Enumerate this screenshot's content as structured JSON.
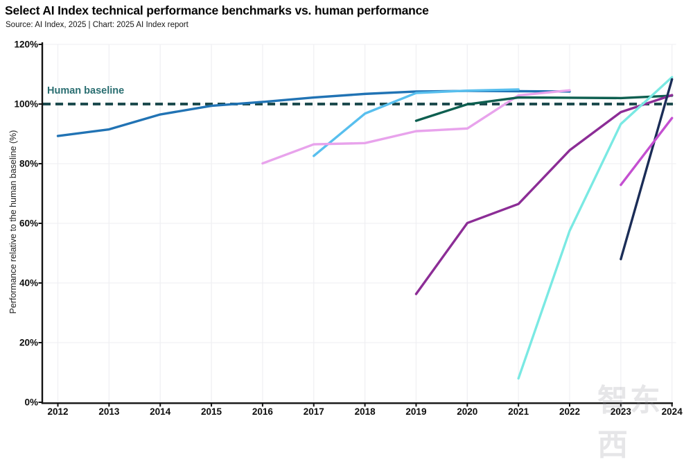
{
  "header": {
    "title": "Select AI Index technical performance benchmarks vs. human performance",
    "source_line": "Source: AI Index, 2025 | Chart: 2025 AI Index report"
  },
  "chart_data": {
    "type": "line",
    "title": "Select AI Index technical performance benchmarks vs. human performance",
    "source": "Source: AI Index, 2025 | Chart: 2025 AI Index report",
    "xlabel": "",
    "ylabel": "Performance relative to the human baseline (%)",
    "x_ticks": [
      2012,
      2013,
      2014,
      2015,
      2016,
      2017,
      2018,
      2019,
      2020,
      2021,
      2022,
      2023,
      2024
    ],
    "y_ticks": [
      0,
      20,
      40,
      60,
      80,
      100,
      120
    ],
    "y_tick_suffix": "%",
    "xlim": [
      2012,
      2024
    ],
    "ylim": [
      0,
      120
    ],
    "grid": true,
    "legend": "none",
    "baseline": {
      "label": "Human baseline",
      "value": 100,
      "color": "#1d4b4e",
      "label_color": "#2a6e71"
    },
    "style": {
      "grid_color": "#f0f0f3",
      "axis_color": "#111111",
      "line_width": 3.4
    },
    "series": [
      {
        "name": "dark-blue",
        "color": "#2173b4",
        "x": [
          2012,
          2013,
          2014,
          2015,
          2016,
          2017,
          2018,
          2019,
          2020,
          2021,
          2022
        ],
        "values": [
          89.3,
          91.5,
          96.5,
          99.4,
          100.7,
          102.2,
          103.4,
          104.2,
          104.4,
          104.3,
          104.2
        ]
      },
      {
        "name": "sky-blue",
        "color": "#58bfee",
        "x": [
          2017,
          2018,
          2019,
          2020,
          2021
        ],
        "values": [
          82.6,
          96.8,
          103.7,
          104.5,
          104.9
        ]
      },
      {
        "name": "plum",
        "color": "#e8a3ec",
        "x": [
          2016,
          2017,
          2018,
          2019,
          2020,
          2021,
          2022
        ],
        "values": [
          80.1,
          86.5,
          86.9,
          90.9,
          91.8,
          102.9,
          104.6
        ]
      },
      {
        "name": "teal-green",
        "color": "#0e5f50",
        "x": [
          2019,
          2020,
          2021,
          2022,
          2023,
          2024
        ],
        "values": [
          94.4,
          99.9,
          102.2,
          102.1,
          102.0,
          102.8
        ]
      },
      {
        "name": "purple",
        "color": "#8c2d96",
        "x": [
          2019,
          2020,
          2021,
          2022,
          2023,
          2024
        ],
        "values": [
          36.3,
          60.1,
          66.5,
          84.5,
          97.3,
          103.0
        ]
      },
      {
        "name": "cyan",
        "color": "#7ae9e3",
        "x": [
          2021,
          2022,
          2023,
          2024
        ],
        "values": [
          8.0,
          57.5,
          93.3,
          109.0
        ]
      },
      {
        "name": "navy",
        "color": "#1b2d57",
        "x": [
          2023,
          2024
        ],
        "values": [
          48.0,
          108.3
        ]
      },
      {
        "name": "magenta",
        "color": "#c44fd1",
        "x": [
          2023,
          2024
        ],
        "values": [
          72.9,
          95.3
        ]
      }
    ]
  },
  "watermark": {
    "text": "智东西"
  }
}
